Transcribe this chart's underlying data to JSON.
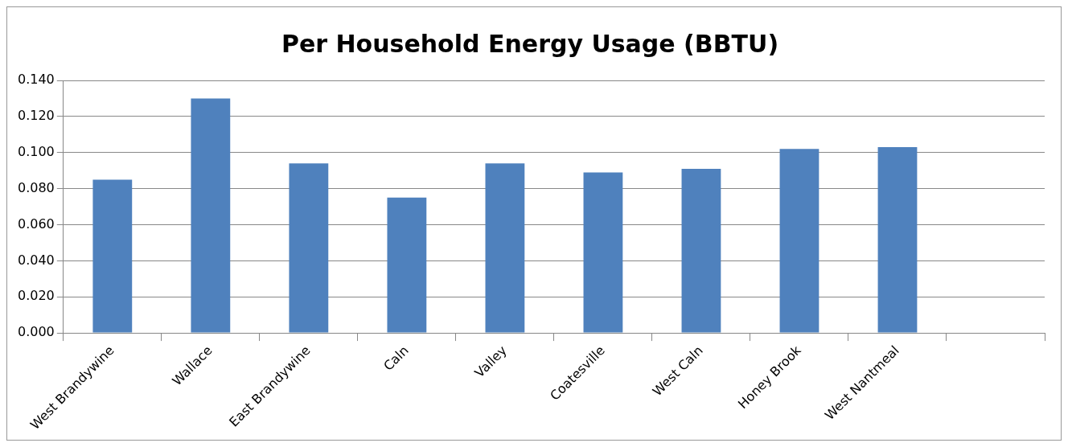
{
  "chart_data": {
    "type": "bar",
    "title": "Per Household Energy Usage (BBTU)",
    "categories": [
      "West Brandywine",
      "Wallace",
      "East Brandywine",
      "Caln",
      "Valley",
      "Coatesville",
      "West Caln",
      "Honey Brook",
      "West Nantmeal",
      null
    ],
    "values": [
      0.085,
      0.13,
      0.094,
      0.075,
      0.094,
      0.089,
      0.091,
      0.102,
      0.103,
      null
    ],
    "color": "#4f81bd",
    "ylim": [
      0,
      0.14
    ],
    "yticks": [
      {
        "value": 0,
        "label": "0.000"
      },
      {
        "value": 0.02,
        "label": "0.020"
      },
      {
        "value": 0.04,
        "label": "0.040"
      },
      {
        "value": 0.06,
        "label": "0.060"
      },
      {
        "value": 0.08,
        "label": "0.080"
      },
      {
        "value": 0.1,
        "label": "0.100"
      },
      {
        "value": 0.12,
        "label": "0.120"
      },
      {
        "value": 0.14,
        "label": "0.140"
      }
    ],
    "grid": "y",
    "legend": false
  }
}
